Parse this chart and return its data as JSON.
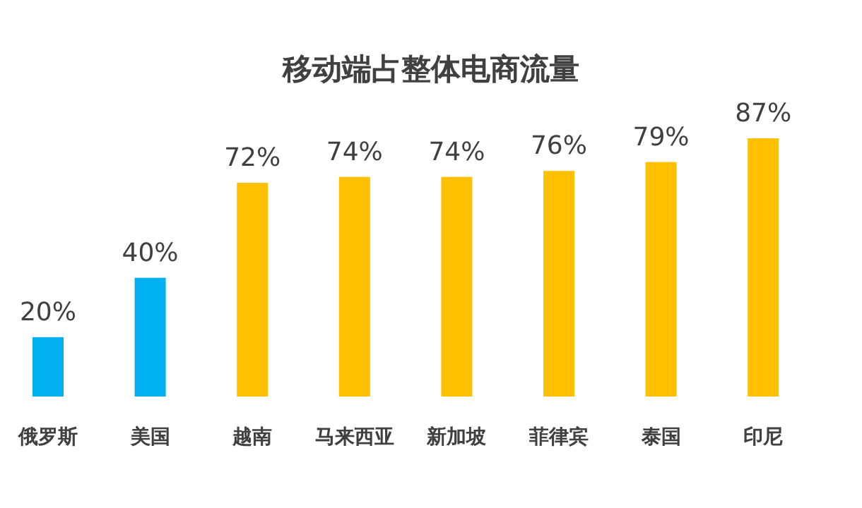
{
  "chart_data": {
    "type": "bar",
    "title": "移动端占整体电商流量",
    "categories": [
      "俄罗斯",
      "美国",
      "越南",
      "马来西亚",
      "新加坡",
      "菲律宾",
      "泰国",
      "印尼"
    ],
    "values": [
      20,
      40,
      72,
      74,
      74,
      76,
      79,
      87
    ],
    "colors": [
      "#00b0f0",
      "#00b0f0",
      "#ffc000",
      "#ffc000",
      "#ffc000",
      "#ffc000",
      "#ffc000",
      "#ffc000"
    ],
    "value_labels": [
      "20%",
      "40%",
      "72%",
      "74%",
      "74%",
      "76%",
      "79%",
      "87%"
    ]
  }
}
